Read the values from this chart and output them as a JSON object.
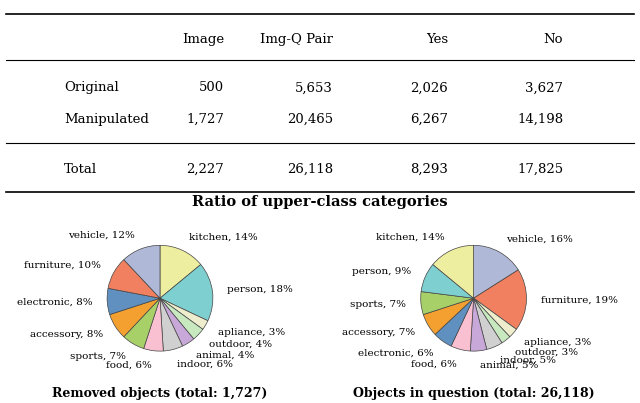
{
  "table": {
    "columns": [
      "",
      "Image",
      "Img-Q Pair",
      "Yes",
      "No"
    ],
    "rows": [
      [
        "Original",
        "500",
        "5,653",
        "2,026",
        "3,627"
      ],
      [
        "Manipulated",
        "1,727",
        "20,465",
        "6,267",
        "14,198"
      ],
      [
        "Total",
        "2,227",
        "26,118",
        "8,293",
        "17,825"
      ]
    ]
  },
  "pie_title": "Ratio of upper-class categories",
  "pie1": {
    "labels": [
      "kitchen",
      "person",
      "apliance",
      "outdoor",
      "animal",
      "indoor",
      "food",
      "sports",
      "accessory",
      "electronic",
      "furniture",
      "vehicle"
    ],
    "values": [
      14,
      18,
      3,
      4,
      4,
      6,
      6,
      7,
      8,
      8,
      10,
      12
    ],
    "colors": [
      "#eeeea0",
      "#7ecfcf",
      "#eeeece",
      "#c8e8c0",
      "#c8a8d8",
      "#d0d0d0",
      "#f8c0d0",
      "#a8d068",
      "#f4a030",
      "#6090c0",
      "#f08060",
      "#b0b8d8"
    ],
    "subtitle": "Removed objects (total: 1,727)"
  },
  "pie2": {
    "labels": [
      "vehicle",
      "furniture",
      "apliance",
      "outdoor",
      "indoor",
      "animal",
      "food",
      "electronic",
      "accessory",
      "sports",
      "person",
      "kitchen"
    ],
    "values": [
      16,
      19,
      3,
      3,
      5,
      5,
      6,
      6,
      7,
      7,
      9,
      14
    ],
    "colors": [
      "#b0b8d8",
      "#f08060",
      "#eeeece",
      "#c8e8c0",
      "#d0d0d0",
      "#c8a8d8",
      "#f8c0d0",
      "#6090c0",
      "#f4a030",
      "#a8d068",
      "#7ecfcf",
      "#eeeea0"
    ],
    "subtitle": "Objects in question (total: 26,118)"
  },
  "background_color": "#ffffff",
  "font_size_table": 9.5,
  "font_size_pie_labels": 7.5,
  "font_size_subtitle": 9,
  "font_size_title": 10.5
}
